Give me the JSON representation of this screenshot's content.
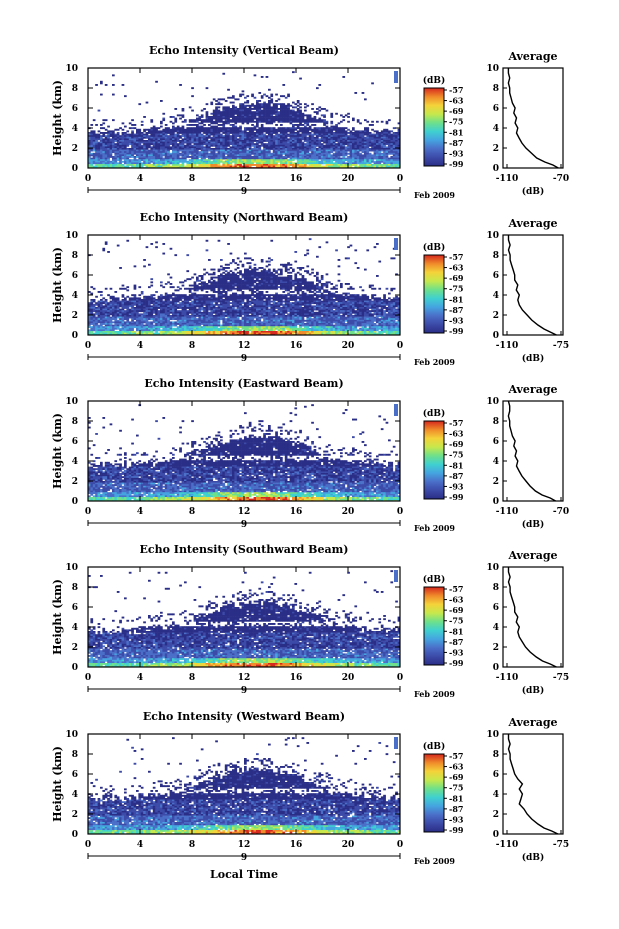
{
  "figure": {
    "xlabel": "Local Time",
    "colormap": [
      "#2a2e86",
      "#3c4aa8",
      "#4a6fc8",
      "#45a4e0",
      "#3fd0d0",
      "#6fe08a",
      "#c7e84c",
      "#f4d23a",
      "#f08a2a",
      "#d6281e"
    ]
  },
  "chart_data": [
    {
      "type": "heatmap",
      "title": "Echo Intensity (Vertical Beam)",
      "ylabel": "Height (km)",
      "ylim": [
        0,
        10
      ],
      "yticks": [
        "0",
        "2",
        "4",
        "6",
        "8",
        "10"
      ],
      "xlim": [
        0,
        24
      ],
      "xticks": [
        "0",
        "4",
        "8",
        "12",
        "16",
        "20",
        "0"
      ],
      "day_label": "9",
      "date_label": "Feb 2009",
      "colorbar": {
        "title": "(dB)",
        "labels": [
          "-57",
          "-63",
          "-69",
          "-75",
          "-81",
          "-87",
          "-93",
          "-99"
        ]
      },
      "average": {
        "title": "Average",
        "xlabel": "(dB)",
        "xticks": [
          "-110",
          "-70"
        ],
        "xlim": [
          -110,
          -70
        ],
        "ylim": [
          0,
          10
        ],
        "profile": [
          [
            0.0,
            -72
          ],
          [
            0.3,
            -76
          ],
          [
            0.6,
            -82
          ],
          [
            1.0,
            -88
          ],
          [
            1.5,
            -92
          ],
          [
            2.0,
            -96
          ],
          [
            2.5,
            -99
          ],
          [
            3.0,
            -101
          ],
          [
            3.5,
            -103
          ],
          [
            4.0,
            -102
          ],
          [
            4.5,
            -104
          ],
          [
            5.0,
            -103
          ],
          [
            5.5,
            -105
          ],
          [
            6.0,
            -104
          ],
          [
            6.5,
            -106
          ],
          [
            7.0,
            -107
          ],
          [
            7.5,
            -108
          ],
          [
            8.0,
            -108
          ],
          [
            8.5,
            -109
          ],
          [
            9.0,
            -108
          ],
          [
            9.5,
            -109
          ],
          [
            10.0,
            -109
          ]
        ]
      }
    },
    {
      "type": "heatmap",
      "title": "Echo Intensity (Northward Beam)",
      "ylabel": "Height (km)",
      "ylim": [
        0,
        10
      ],
      "yticks": [
        "0",
        "2",
        "4",
        "6",
        "8",
        "10"
      ],
      "xlim": [
        0,
        24
      ],
      "xticks": [
        "0",
        "4",
        "8",
        "12",
        "16",
        "20",
        "0"
      ],
      "day_label": "9",
      "date_label": "Feb 2009",
      "colorbar": {
        "title": "(dB)",
        "labels": [
          "-57",
          "-63",
          "-69",
          "-75",
          "-81",
          "-87",
          "-93",
          "-99"
        ]
      },
      "average": {
        "title": "Average",
        "xlabel": "(dB)",
        "xticks": [
          "-110",
          "-75"
        ],
        "xlim": [
          -110,
          -75
        ],
        "ylim": [
          0,
          10
        ],
        "profile": [
          [
            0.0,
            -78
          ],
          [
            0.3,
            -82
          ],
          [
            0.6,
            -86
          ],
          [
            1.0,
            -90
          ],
          [
            1.5,
            -94
          ],
          [
            2.0,
            -97
          ],
          [
            2.5,
            -100
          ],
          [
            3.0,
            -102
          ],
          [
            3.5,
            -103
          ],
          [
            4.0,
            -102
          ],
          [
            4.5,
            -104
          ],
          [
            5.0,
            -103
          ],
          [
            5.5,
            -105
          ],
          [
            6.0,
            -105
          ],
          [
            6.5,
            -106
          ],
          [
            7.0,
            -107
          ],
          [
            7.5,
            -108
          ],
          [
            8.0,
            -108
          ],
          [
            8.5,
            -109
          ],
          [
            9.0,
            -108
          ],
          [
            9.5,
            -109
          ],
          [
            10.0,
            -109
          ]
        ]
      }
    },
    {
      "type": "heatmap",
      "title": "Echo Intensity (Eastward Beam)",
      "ylabel": "Height (km)",
      "ylim": [
        0,
        10
      ],
      "yticks": [
        "0",
        "2",
        "4",
        "6",
        "8",
        "10"
      ],
      "xlim": [
        0,
        24
      ],
      "xticks": [
        "0",
        "4",
        "8",
        "12",
        "16",
        "20",
        "0"
      ],
      "day_label": "9",
      "date_label": "Feb 2009",
      "colorbar": {
        "title": "(dB)",
        "labels": [
          "-57",
          "-63",
          "-69",
          "-75",
          "-81",
          "-87",
          "-93",
          "-99"
        ]
      },
      "average": {
        "title": "Average",
        "xlabel": "(dB)",
        "xticks": [
          "-110",
          "-70"
        ],
        "xlim": [
          -110,
          -70
        ],
        "ylim": [
          0,
          10
        ],
        "profile": [
          [
            0.0,
            -74
          ],
          [
            0.3,
            -78
          ],
          [
            0.6,
            -84
          ],
          [
            1.0,
            -89
          ],
          [
            1.5,
            -93
          ],
          [
            2.0,
            -96
          ],
          [
            2.5,
            -99
          ],
          [
            3.0,
            -101
          ],
          [
            3.5,
            -103
          ],
          [
            4.0,
            -102
          ],
          [
            4.5,
            -104
          ],
          [
            5.0,
            -103
          ],
          [
            5.5,
            -105
          ],
          [
            6.0,
            -104
          ],
          [
            6.5,
            -106
          ],
          [
            7.0,
            -107
          ],
          [
            7.5,
            -108
          ],
          [
            8.0,
            -108
          ],
          [
            8.5,
            -109
          ],
          [
            9.0,
            -108
          ],
          [
            9.5,
            -108
          ],
          [
            10.0,
            -109
          ]
        ]
      }
    },
    {
      "type": "heatmap",
      "title": "Echo Intensity (Southward Beam)",
      "ylabel": "Height (km)",
      "ylim": [
        0,
        10
      ],
      "yticks": [
        "0",
        "2",
        "4",
        "6",
        "8",
        "10"
      ],
      "xlim": [
        0,
        24
      ],
      "xticks": [
        "0",
        "4",
        "8",
        "12",
        "16",
        "20",
        "0"
      ],
      "day_label": "9",
      "date_label": "Feb 2009",
      "colorbar": {
        "title": "(dB)",
        "labels": [
          "-57",
          "-63",
          "-69",
          "-75",
          "-81",
          "-87",
          "-93",
          "-99"
        ]
      },
      "average": {
        "title": "Average",
        "xlabel": "(dB)",
        "xticks": [
          "-110",
          "-75"
        ],
        "xlim": [
          -110,
          -75
        ],
        "ylim": [
          0,
          10
        ],
        "profile": [
          [
            0.0,
            -78
          ],
          [
            0.3,
            -82
          ],
          [
            0.6,
            -87
          ],
          [
            1.0,
            -91
          ],
          [
            1.5,
            -95
          ],
          [
            2.0,
            -98
          ],
          [
            2.5,
            -100
          ],
          [
            3.0,
            -102
          ],
          [
            3.5,
            -103
          ],
          [
            4.0,
            -102
          ],
          [
            4.5,
            -104
          ],
          [
            5.0,
            -103
          ],
          [
            5.5,
            -105
          ],
          [
            6.0,
            -105
          ],
          [
            6.5,
            -106
          ],
          [
            7.0,
            -107
          ],
          [
            7.5,
            -108
          ],
          [
            8.0,
            -108
          ],
          [
            8.5,
            -109
          ],
          [
            9.0,
            -108
          ],
          [
            9.5,
            -109
          ],
          [
            10.0,
            -109
          ]
        ]
      }
    },
    {
      "type": "heatmap",
      "title": "Echo Intensity (Westward Beam)",
      "ylabel": "Height (km)",
      "ylim": [
        0,
        10
      ],
      "yticks": [
        "0",
        "2",
        "4",
        "6",
        "8",
        "10"
      ],
      "xlim": [
        0,
        24
      ],
      "xticks": [
        "0",
        "4",
        "8",
        "12",
        "16",
        "20",
        "0"
      ],
      "day_label": "9",
      "date_label": "Feb 2009",
      "colorbar": {
        "title": "(dB)",
        "labels": [
          "-57",
          "-63",
          "-69",
          "-75",
          "-81",
          "-87",
          "-93",
          "-99"
        ]
      },
      "average": {
        "title": "Average",
        "xlabel": "(dB)",
        "xticks": [
          "-110",
          "-75"
        ],
        "xlim": [
          -110,
          -75
        ],
        "ylim": [
          0,
          10
        ],
        "profile": [
          [
            0.0,
            -77
          ],
          [
            0.3,
            -81
          ],
          [
            0.6,
            -86
          ],
          [
            1.0,
            -90
          ],
          [
            1.5,
            -94
          ],
          [
            2.0,
            -97
          ],
          [
            2.5,
            -99
          ],
          [
            3.0,
            -102
          ],
          [
            3.5,
            -101
          ],
          [
            4.0,
            -100
          ],
          [
            4.5,
            -102
          ],
          [
            5.0,
            -100
          ],
          [
            5.5,
            -103
          ],
          [
            6.0,
            -105
          ],
          [
            6.5,
            -106
          ],
          [
            7.0,
            -107
          ],
          [
            7.5,
            -108
          ],
          [
            8.0,
            -108
          ],
          [
            8.5,
            -109
          ],
          [
            9.0,
            -108
          ],
          [
            9.5,
            -109
          ],
          [
            10.0,
            -109
          ]
        ]
      }
    }
  ]
}
